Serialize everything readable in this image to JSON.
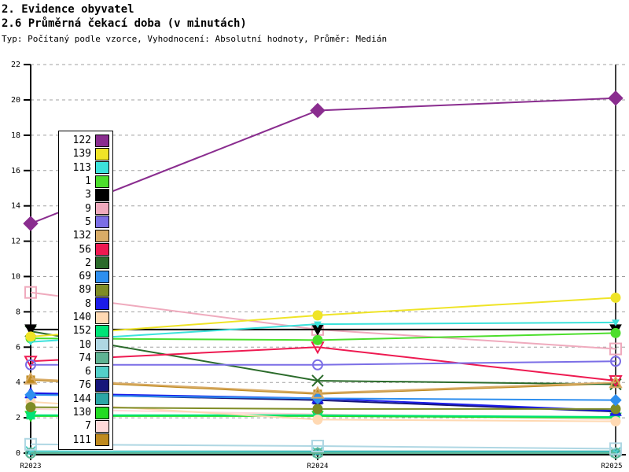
{
  "header": {
    "line1": "2. Evidence obyvatel",
    "line2": "2.6 Průměrná čekací doba (v minutách)",
    "line3": "Typ: Počítaný podle vzorce, Vyhodnocení: Absolutní hodnoty, Průměr: Medián"
  },
  "chart_data": {
    "type": "line",
    "title": "2.6 Průměrná čekací doba (v minutách)",
    "xlabel": "",
    "ylabel": "",
    "categories": [
      "R2023",
      "R2024",
      "R2025"
    ],
    "ylim": [
      0,
      22
    ],
    "ytick_step": 2,
    "grid": "horizontal-dashed",
    "grid_color": "#a0a0a0",
    "axis_color": "#000000",
    "legend_position": "left-overlay",
    "series": [
      {
        "name": "122",
        "color": "#8a2d8f",
        "marker": "diamond",
        "open": false,
        "size": 9,
        "values": [
          13.0,
          19.4,
          20.1
        ]
      },
      {
        "name": "139",
        "color": "#efe427",
        "marker": "circle",
        "open": false,
        "size": 6,
        "values": [
          6.6,
          7.8,
          8.8
        ]
      },
      {
        "name": "113",
        "color": "#3ce2db",
        "marker": "triangle-down",
        "open": false,
        "size": 4,
        "values": [
          6.3,
          7.3,
          7.4
        ]
      },
      {
        "name": "1",
        "color": "#4cde2c",
        "marker": "circle",
        "open": false,
        "size": 6,
        "values": [
          6.5,
          6.4,
          6.8
        ]
      },
      {
        "name": "3",
        "color": "#000000",
        "marker": "triangle-down",
        "open": false,
        "size": 7,
        "values": [
          7.0,
          7.0,
          7.0
        ]
      },
      {
        "name": "9",
        "color": "#efaabd",
        "marker": "square",
        "open": true,
        "size": 7,
        "values": [
          9.1,
          7.0,
          5.9
        ]
      },
      {
        "name": "5",
        "color": "#7b6ee6",
        "marker": "circle",
        "open": true,
        "size": 6,
        "values": [
          5.0,
          5.0,
          5.2
        ]
      },
      {
        "name": "132",
        "color": "#d8ab66",
        "marker": "triangle-up",
        "open": true,
        "size": 7,
        "values": [
          4.2,
          3.4,
          4.0
        ]
      },
      {
        "name": "56",
        "color": "#ee1a51",
        "marker": "triangle-down",
        "open": true,
        "size": 7,
        "values": [
          5.2,
          6.0,
          4.1
        ]
      },
      {
        "name": "2",
        "color": "#2b6b2b",
        "marker": "x",
        "open": true,
        "size": 7,
        "values": [
          6.9,
          4.1,
          3.9
        ]
      },
      {
        "name": "69",
        "color": "#2e8fef",
        "marker": "diamond",
        "open": false,
        "size": 7,
        "values": [
          3.3,
          3.1,
          3.0
        ]
      },
      {
        "name": "89",
        "color": "#7f8c25",
        "marker": "circle",
        "open": false,
        "size": 6,
        "values": [
          2.6,
          2.5,
          2.5
        ]
      },
      {
        "name": "8",
        "color": "#1c1ce8",
        "marker": "triangle-up",
        "open": false,
        "size": 7,
        "values": [
          3.4,
          3.1,
          2.4
        ]
      },
      {
        "name": "140",
        "color": "#ffd9b3",
        "marker": "circle",
        "open": false,
        "size": 6,
        "values": [
          2.9,
          1.9,
          1.8
        ]
      },
      {
        "name": "152",
        "color": "#00e377",
        "marker": "square",
        "open": false,
        "size": 5,
        "values": [
          2.15,
          2.15,
          2.05
        ]
      },
      {
        "name": "10",
        "color": "#afd7e3",
        "marker": "square",
        "open": true,
        "size": 7,
        "values": [
          0.5,
          0.4,
          0.25
        ]
      },
      {
        "name": "74",
        "color": "#5fb393",
        "marker": "circle",
        "open": true,
        "size": 6,
        "values": [
          0.0,
          0.0,
          0.0
        ]
      },
      {
        "name": "6",
        "color": "#53cfc9",
        "marker": "x",
        "open": true,
        "size": 6,
        "values": [
          0.1,
          0.05,
          0.05
        ]
      },
      {
        "name": "76",
        "color": "#15157a",
        "marker": "triangle-up",
        "open": false,
        "size": 6,
        "values": [
          3.35,
          3.0,
          2.35
        ]
      },
      {
        "name": "144",
        "color": "#2ba6a6",
        "marker": "diamond",
        "open": false,
        "size": 5,
        "values": [
          0.1,
          0.1,
          0.1
        ]
      },
      {
        "name": "130",
        "color": "#23db23",
        "marker": "triangle-down",
        "open": false,
        "size": 7,
        "values": [
          2.1,
          2.1,
          2.0
        ]
      },
      {
        "name": "7",
        "color": "#ffd9d9",
        "marker": "square",
        "open": false,
        "size": 5,
        "values": [
          2.5,
          2.2,
          1.9
        ]
      },
      {
        "name": "111",
        "color": "#bf8a1f",
        "marker": "square",
        "open": false,
        "size": 5,
        "values": [
          4.15,
          3.35,
          3.95
        ]
      }
    ]
  }
}
